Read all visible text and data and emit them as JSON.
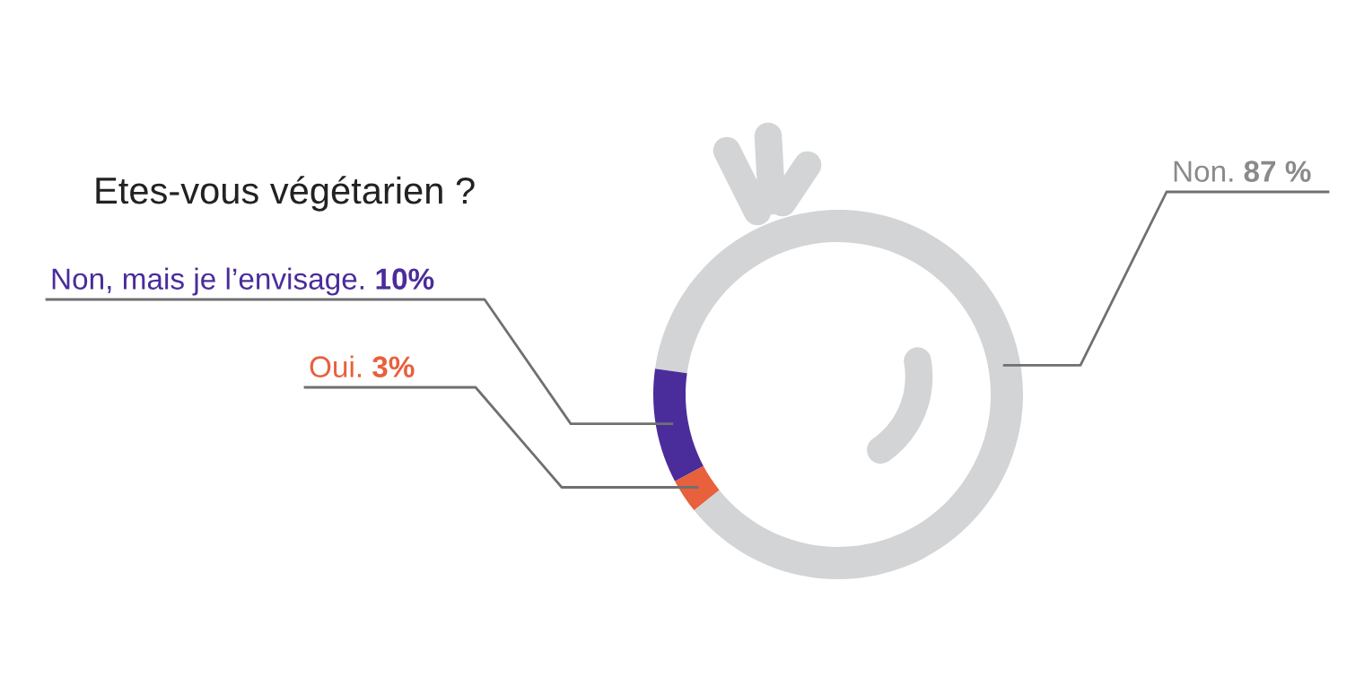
{
  "chart_data": {
    "type": "donut",
    "title": "Etes-vous végétarien ?",
    "categories": [
      "Non.",
      "Non, mais je l’envisage.",
      "Oui."
    ],
    "values": [
      87,
      10,
      3
    ],
    "colors": [
      "#d3d4d6",
      "#4b2c9b",
      "#e8603c"
    ],
    "value_labels": [
      "87 %",
      "10%",
      "3%"
    ]
  }
}
